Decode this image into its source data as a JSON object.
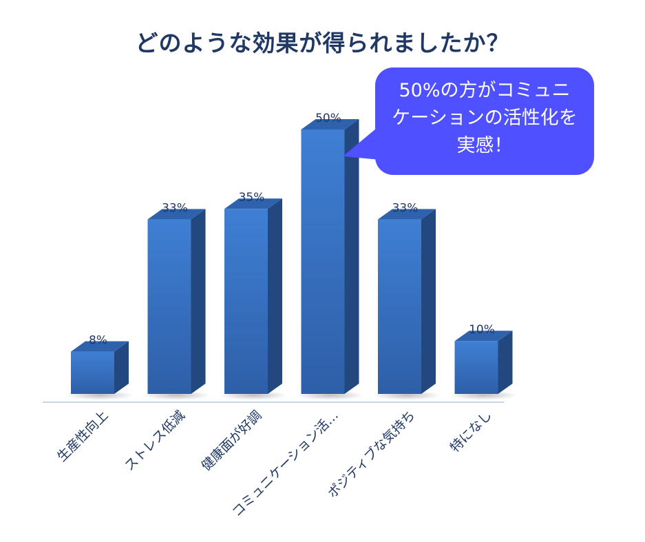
{
  "title": "どのような効果が得られましたか？",
  "callout": {
    "text": "50%の方がコミュニケーションの活性化を実感！"
  },
  "colors": {
    "bar_front_top": "#3f7fd4",
    "bar_front_bottom": "#2e5fa8",
    "bar_side": "#23487f",
    "bar_top": "#2f62ad",
    "label": "#1f3864",
    "axis": "#c6d6ea",
    "callout": "#4f50ff"
  },
  "chart_data": {
    "type": "bar",
    "style": "3d-column",
    "categories": [
      "生産性向上",
      "ストレス低減",
      "健康面が好調",
      "コミュニケーション活…",
      "ポジティブな気持ち",
      "特になし"
    ],
    "values": [
      8,
      33,
      35,
      50,
      33,
      10
    ],
    "data_labels": [
      "8%",
      "33%",
      "35%",
      "50%",
      "33%",
      "10%"
    ],
    "unit": "%",
    "ylim": [
      0,
      50
    ],
    "grid": false,
    "legend": "none"
  }
}
